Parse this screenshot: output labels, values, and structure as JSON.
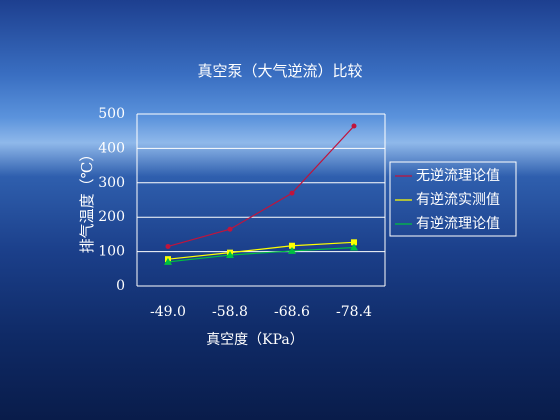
{
  "chart_data": {
    "type": "line",
    "title": "真空泵（大气逆流）比较",
    "x_label": "真空度（KPa）",
    "y_label": "排气温度（℃）",
    "categories": [
      "-49.0",
      "-58.8",
      "-68.6",
      "-78.4"
    ],
    "series": [
      {
        "name": "无逆流理论值",
        "color": "#c0143c",
        "values": [
          115,
          165,
          270,
          465
        ]
      },
      {
        "name": "有逆流实测值",
        "color": "#ffff00",
        "values": [
          78,
          97,
          117,
          127
        ]
      },
      {
        "name": "有逆流理论值",
        "color": "#00c040",
        "values": [
          70,
          90,
          102,
          112
        ]
      }
    ],
    "ylim": [
      0,
      500
    ],
    "yticks": [
      0,
      100,
      200,
      300,
      400,
      500
    ],
    "grid": true
  }
}
